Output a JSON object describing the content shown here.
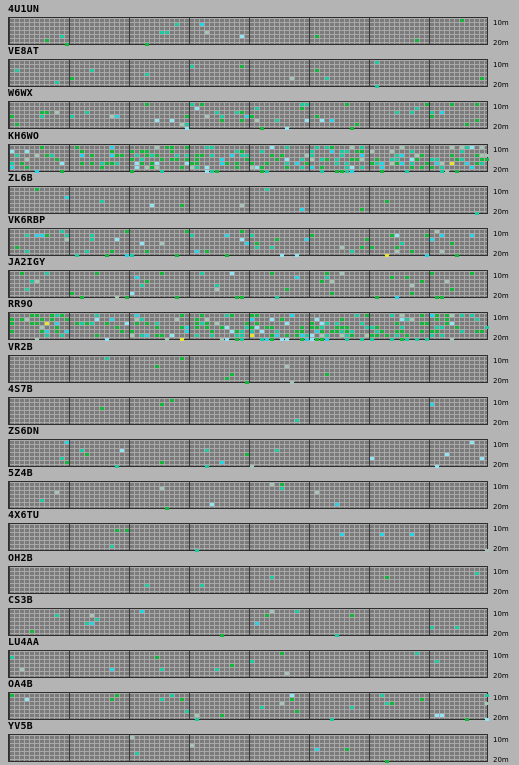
{
  "band_labels": {
    "top": "10m",
    "bottom": "20m"
  },
  "colors": {
    "background": "#b4b4b4",
    "grid": "#7b7b7b",
    "grid_line": "#a9a9a9",
    "hour_divider": "#3a3a3a",
    "signal_green": "#13b53a",
    "signal_teal": "#1ec9a0",
    "signal_cyan": "#28d2e6",
    "signal_light": "#8fe3f3",
    "signal_yellow": "#e6e62e",
    "signal_grey": "#a6c4b4"
  },
  "stations": [
    {
      "call": "4U1UN"
    },
    {
      "call": "VE8AT"
    },
    {
      "call": "W6WX"
    },
    {
      "call": "KH6WO"
    },
    {
      "call": "ZL6B"
    },
    {
      "call": "VK6RBP"
    },
    {
      "call": "JA2IGY"
    },
    {
      "call": "RR9O"
    },
    {
      "call": "VR2B"
    },
    {
      "call": "4S7B"
    },
    {
      "call": "ZS6DN"
    },
    {
      "call": "5Z4B"
    },
    {
      "call": "4X6TU"
    },
    {
      "call": "OH2B"
    },
    {
      "call": "CS3B"
    },
    {
      "call": "LU4AA"
    },
    {
      "call": "OA4B"
    },
    {
      "call": "YV5B"
    }
  ]
}
